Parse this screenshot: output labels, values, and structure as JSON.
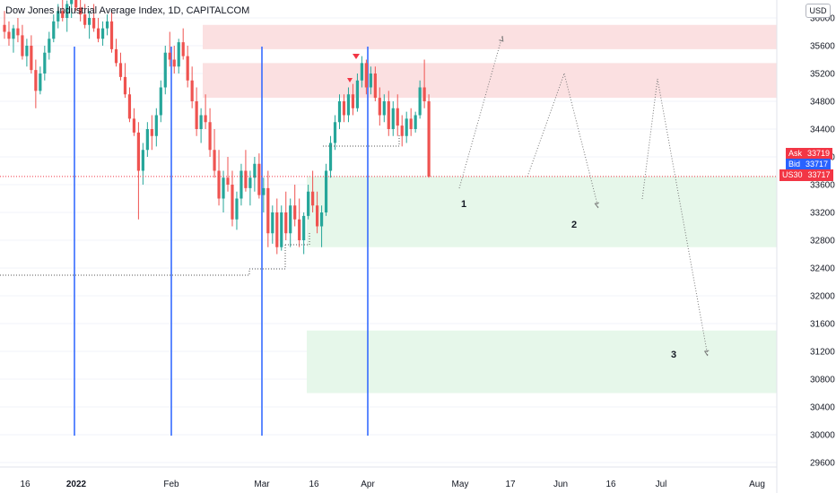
{
  "header": {
    "title": "Dow Jones Industrial Average Index, 1D, CAPITALCOM"
  },
  "currency_button": "USD",
  "price_tags": {
    "ask": {
      "label": "Ask",
      "value": "33719",
      "color": "#f23645"
    },
    "bid": {
      "label": "Bid",
      "value": "33717",
      "color": "#2962ff"
    },
    "last": {
      "label": "US30",
      "value": "33717",
      "color": "#f23645"
    }
  },
  "colors": {
    "up": "#26a69a",
    "down": "#ef5350",
    "vline": "#2962ff",
    "supply": "#fbe0e1",
    "demand": "#e6f7ea",
    "grid": "#f0f3fa"
  },
  "chart_data": {
    "type": "candlestick",
    "title": "Dow Jones Industrial Average Index, 1D, CAPITALCOM",
    "y_axis": {
      "ticks": [
        36000,
        35600,
        35200,
        34800,
        34400,
        34000,
        33600,
        33200,
        32800,
        32400,
        32000,
        31600,
        31200,
        30800,
        30400,
        30000,
        29600
      ],
      "range": [
        29320,
        36260
      ]
    },
    "x_axis": {
      "ticks": [
        "16",
        "2022",
        "Feb",
        "Mar",
        "16",
        "Apr",
        "May",
        "17",
        "Jun",
        "16",
        "Jul",
        "Aug"
      ]
    },
    "ohlc": [
      [
        35900,
        36100,
        35700,
        35800
      ],
      [
        35800,
        35950,
        35600,
        35700
      ],
      [
        35700,
        35900,
        35500,
        35850
      ],
      [
        35850,
        36000,
        35650,
        35750
      ],
      [
        35750,
        35900,
        35400,
        35450
      ],
      [
        35450,
        35700,
        35300,
        35600
      ],
      [
        35600,
        35750,
        35200,
        35250
      ],
      [
        35250,
        35400,
        34700,
        34950
      ],
      [
        34950,
        35300,
        34900,
        35200
      ],
      [
        35200,
        35600,
        35100,
        35500
      ],
      [
        35500,
        35800,
        35400,
        35700
      ],
      [
        35700,
        36050,
        35650,
        35950
      ],
      [
        35950,
        36200,
        35850,
        36100
      ],
      [
        36100,
        36300,
        35950,
        36000
      ],
      [
        36000,
        36250,
        35800,
        36200
      ],
      [
        36200,
        36400,
        36000,
        36300
      ],
      [
        36300,
        36450,
        36100,
        36150
      ],
      [
        36150,
        36300,
        35950,
        36050
      ],
      [
        36050,
        36200,
        35850,
        35900
      ],
      [
        35900,
        36100,
        35700,
        36000
      ],
      [
        36000,
        36200,
        35800,
        35850
      ],
      [
        35850,
        36000,
        35650,
        35700
      ],
      [
        35700,
        35950,
        35600,
        35850
      ],
      [
        35850,
        36050,
        35750,
        35950
      ],
      [
        35950,
        36100,
        35500,
        35550
      ],
      [
        35550,
        35700,
        35300,
        35350
      ],
      [
        35350,
        35500,
        35100,
        35150
      ],
      [
        35150,
        35350,
        34850,
        34900
      ],
      [
        34900,
        35000,
        34500,
        34550
      ],
      [
        34550,
        34700,
        34300,
        34350
      ],
      [
        34350,
        34500,
        33100,
        33800
      ],
      [
        33800,
        34200,
        33600,
        34100
      ],
      [
        34100,
        34500,
        34000,
        34400
      ],
      [
        34400,
        34600,
        34100,
        34300
      ],
      [
        34300,
        34700,
        34150,
        34600
      ],
      [
        34600,
        35100,
        34500,
        35000
      ],
      [
        35000,
        35600,
        34900,
        35500
      ],
      [
        35500,
        35800,
        35300,
        35400
      ],
      [
        35400,
        35600,
        35200,
        35300
      ],
      [
        35300,
        35700,
        35200,
        35650
      ],
      [
        35650,
        35850,
        35400,
        35450
      ],
      [
        35450,
        35600,
        35000,
        35100
      ],
      [
        35100,
        35300,
        34700,
        34800
      ],
      [
        34800,
        35000,
        34300,
        34400
      ],
      [
        34400,
        34700,
        34200,
        34600
      ],
      [
        34600,
        34900,
        34400,
        34500
      ],
      [
        34500,
        34700,
        34000,
        34100
      ],
      [
        34100,
        34400,
        33700,
        33800
      ],
      [
        33800,
        34100,
        33300,
        33400
      ],
      [
        33400,
        33800,
        33200,
        33700
      ],
      [
        33700,
        34000,
        33500,
        33600
      ],
      [
        33600,
        33800,
        33000,
        33100
      ],
      [
        33100,
        33500,
        32950,
        33400
      ],
      [
        33400,
        33900,
        33300,
        33800
      ],
      [
        33800,
        34100,
        33500,
        33550
      ],
      [
        33550,
        33800,
        33300,
        33700
      ],
      [
        33700,
        34000,
        33500,
        33900
      ],
      [
        33900,
        34050,
        33400,
        33450
      ],
      [
        33450,
        33700,
        33200,
        33550
      ],
      [
        33550,
        33800,
        32700,
        32900
      ],
      [
        32900,
        33300,
        32750,
        33200
      ],
      [
        33200,
        33400,
        32600,
        32700
      ],
      [
        32700,
        33300,
        32650,
        33200
      ],
      [
        33200,
        33500,
        32800,
        32900
      ],
      [
        32900,
        33400,
        32700,
        33300
      ],
      [
        33300,
        33600,
        33000,
        33100
      ],
      [
        33100,
        33400,
        32700,
        32800
      ],
      [
        32800,
        33200,
        32600,
        33150
      ],
      [
        33150,
        33600,
        33100,
        33500
      ],
      [
        33500,
        33800,
        33200,
        33300
      ],
      [
        33300,
        33500,
        32900,
        33000
      ],
      [
        33000,
        33300,
        32700,
        33200
      ],
      [
        33200,
        33900,
        33150,
        33800
      ],
      [
        33800,
        34300,
        33700,
        34200
      ],
      [
        34200,
        34600,
        34100,
        34500
      ],
      [
        34500,
        34900,
        34400,
        34800
      ],
      [
        34800,
        34900,
        34500,
        34600
      ],
      [
        34600,
        35000,
        34500,
        34900
      ],
      [
        34900,
        35050,
        34600,
        34700
      ],
      [
        34700,
        35200,
        34650,
        35100
      ],
      [
        35100,
        35450,
        35000,
        35350
      ],
      [
        35350,
        35400,
        34900,
        35000
      ],
      [
        35000,
        35300,
        34900,
        35200
      ],
      [
        35200,
        35300,
        34800,
        34850
      ],
      [
        34850,
        35000,
        34450,
        34600
      ],
      [
        34600,
        34900,
        34500,
        34800
      ],
      [
        34800,
        34950,
        34300,
        34400
      ],
      [
        34400,
        34800,
        34300,
        34700
      ],
      [
        34700,
        34900,
        34300,
        34450
      ],
      [
        34450,
        34600,
        34150,
        34300
      ],
      [
        34300,
        34650,
        34200,
        34550
      ],
      [
        34550,
        34700,
        34300,
        34400
      ],
      [
        34400,
        34650,
        34350,
        34600
      ],
      [
        34600,
        35100,
        34550,
        35000
      ],
      [
        35000,
        35400,
        34700,
        34800
      ],
      [
        34800,
        34900,
        33700,
        33717
      ]
    ],
    "horizontal_zones": [
      {
        "kind": "supply",
        "from": 35550,
        "to": 35900
      },
      {
        "kind": "supply",
        "from": 34850,
        "to": 35350
      },
      {
        "kind": "demand",
        "from": 32700,
        "to": 33720
      },
      {
        "kind": "demand",
        "from": 30600,
        "to": 31500
      }
    ],
    "annotations": [
      "1",
      "2",
      "3"
    ]
  }
}
